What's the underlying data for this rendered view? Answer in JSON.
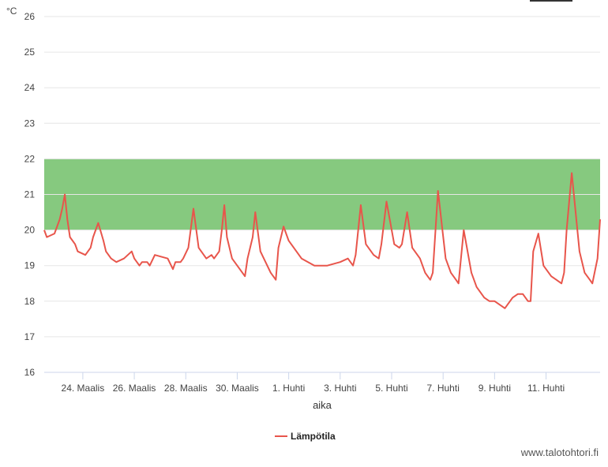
{
  "chart_data": {
    "type": "line",
    "unit_label": "°C",
    "xlabel": "aika",
    "ylim": [
      16,
      26
    ],
    "y_ticks": [
      16,
      17,
      18,
      19,
      20,
      21,
      22,
      23,
      24,
      25,
      26
    ],
    "x_range_days": [
      22.5,
      44.1
    ],
    "x_ticks": [
      {
        "day": 24,
        "label": "24. Maalis"
      },
      {
        "day": 26,
        "label": "26. Maalis"
      },
      {
        "day": 28,
        "label": "28. Maalis"
      },
      {
        "day": 30,
        "label": "30. Maalis"
      },
      {
        "day": 32,
        "label": "1. Huhti"
      },
      {
        "day": 34,
        "label": "3. Huhti"
      },
      {
        "day": 36,
        "label": "5. Huhti"
      },
      {
        "day": 38,
        "label": "7. Huhti"
      },
      {
        "day": 40,
        "label": "9. Huhti"
      },
      {
        "day": 42,
        "label": "11. Huhti"
      }
    ],
    "band": {
      "from": 20,
      "to": 22,
      "color": "#86c97f"
    },
    "series": [
      {
        "name": "Lämpötila",
        "color": "#e8554b",
        "x": [
          22.5,
          22.6,
          22.9,
          23.1,
          23.2,
          23.3,
          23.4,
          23.5,
          23.6,
          23.7,
          23.8,
          24.1,
          24.3,
          24.4,
          24.6,
          24.8,
          24.9,
          25.1,
          25.3,
          25.6,
          25.9,
          26.0,
          26.2,
          26.3,
          26.5,
          26.6,
          26.8,
          27.3,
          27.5,
          27.6,
          27.8,
          27.9,
          28.1,
          28.3,
          28.5,
          28.8,
          29.0,
          29.1,
          29.3,
          29.4,
          29.5,
          29.6,
          29.8,
          30.1,
          30.3,
          30.4,
          30.6,
          30.7,
          30.9,
          31.3,
          31.5,
          31.6,
          31.8,
          32.0,
          32.5,
          33.0,
          33.5,
          34.0,
          34.3,
          34.5,
          34.6,
          34.8,
          35.0,
          35.3,
          35.5,
          35.6,
          35.8,
          36.1,
          36.3,
          36.4,
          36.6,
          36.8,
          37.1,
          37.3,
          37.4,
          37.5,
          37.6,
          37.8,
          38.1,
          38.3,
          38.5,
          38.6,
          38.8,
          39.1,
          39.3,
          39.6,
          39.8,
          40.0,
          40.2,
          40.4,
          40.7,
          40.9,
          41.1,
          41.3,
          41.4,
          41.5,
          41.7,
          41.9,
          42.2,
          42.4,
          42.6,
          42.7,
          42.8,
          43.0,
          43.3,
          43.5,
          43.7,
          43.8,
          44.0,
          44.1
        ],
        "values": [
          20.0,
          19.8,
          19.9,
          20.3,
          20.6,
          21.0,
          20.3,
          19.8,
          19.7,
          19.6,
          19.4,
          19.3,
          19.5,
          19.8,
          20.2,
          19.7,
          19.4,
          19.2,
          19.1,
          19.2,
          19.4,
          19.2,
          19.0,
          19.1,
          19.1,
          19.0,
          19.3,
          19.2,
          18.9,
          19.1,
          19.1,
          19.2,
          19.5,
          20.6,
          19.5,
          19.2,
          19.3,
          19.2,
          19.4,
          20.0,
          20.7,
          19.8,
          19.2,
          18.9,
          18.7,
          19.2,
          19.8,
          20.5,
          19.4,
          18.8,
          18.6,
          19.5,
          20.1,
          19.7,
          19.2,
          19.0,
          19.0,
          19.1,
          19.2,
          19.0,
          19.3,
          20.7,
          19.6,
          19.3,
          19.2,
          19.6,
          20.8,
          19.6,
          19.5,
          19.6,
          20.5,
          19.5,
          19.2,
          18.8,
          18.7,
          18.6,
          18.8,
          21.1,
          19.2,
          18.8,
          18.6,
          18.5,
          20.0,
          18.8,
          18.4,
          18.1,
          18.0,
          18.0,
          17.9,
          17.8,
          18.1,
          18.2,
          18.2,
          18.0,
          18.0,
          19.4,
          19.9,
          19.0,
          18.7,
          18.6,
          18.5,
          18.8,
          20.0,
          21.6,
          19.4,
          18.8,
          18.6,
          18.5,
          19.2,
          20.3
        ]
      }
    ],
    "legend_position": "bottom-center"
  },
  "credit": "www.talotohtori.fi"
}
